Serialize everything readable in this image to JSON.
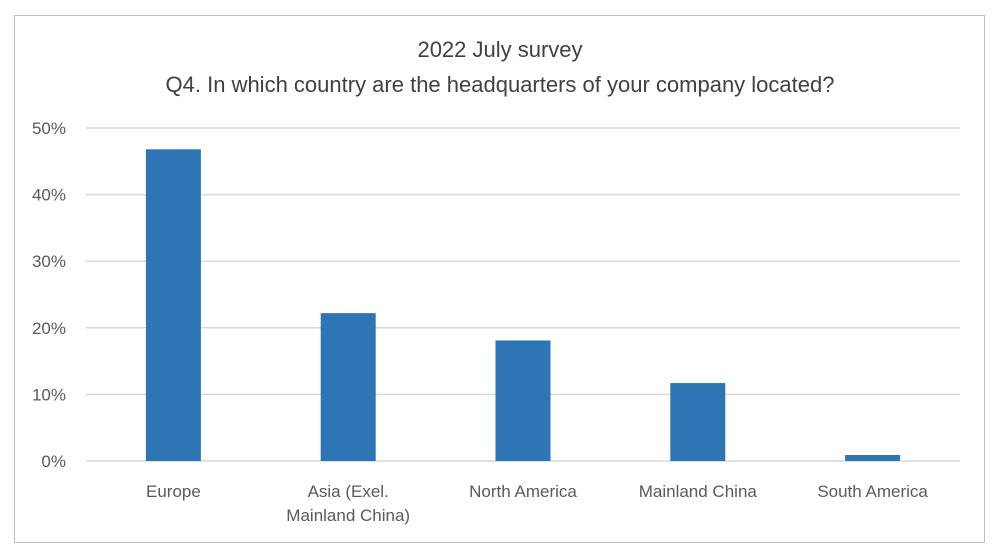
{
  "chart_data": {
    "type": "bar",
    "title": "2022 July survey",
    "subtitle": "Q4. In which country are the headquarters of your company located?",
    "categories": [
      [
        "Europe"
      ],
      [
        "Asia (Exel.",
        "Mainland China)"
      ],
      [
        "North America"
      ],
      [
        "Mainland China"
      ],
      [
        "South America"
      ]
    ],
    "values": [
      46.8,
      22.2,
      18.1,
      11.7,
      0.9
    ],
    "ylim": [
      0,
      50
    ],
    "yticks": [
      0,
      10,
      20,
      30,
      40,
      50
    ],
    "ytick_labels": [
      "0%",
      "10%",
      "20%",
      "30%",
      "40%",
      "50%"
    ],
    "xlabel": "",
    "ylabel": "",
    "grid": true,
    "legend": "none",
    "bar_color": "#2e75b6",
    "grid_color": "#d9d9d9"
  }
}
